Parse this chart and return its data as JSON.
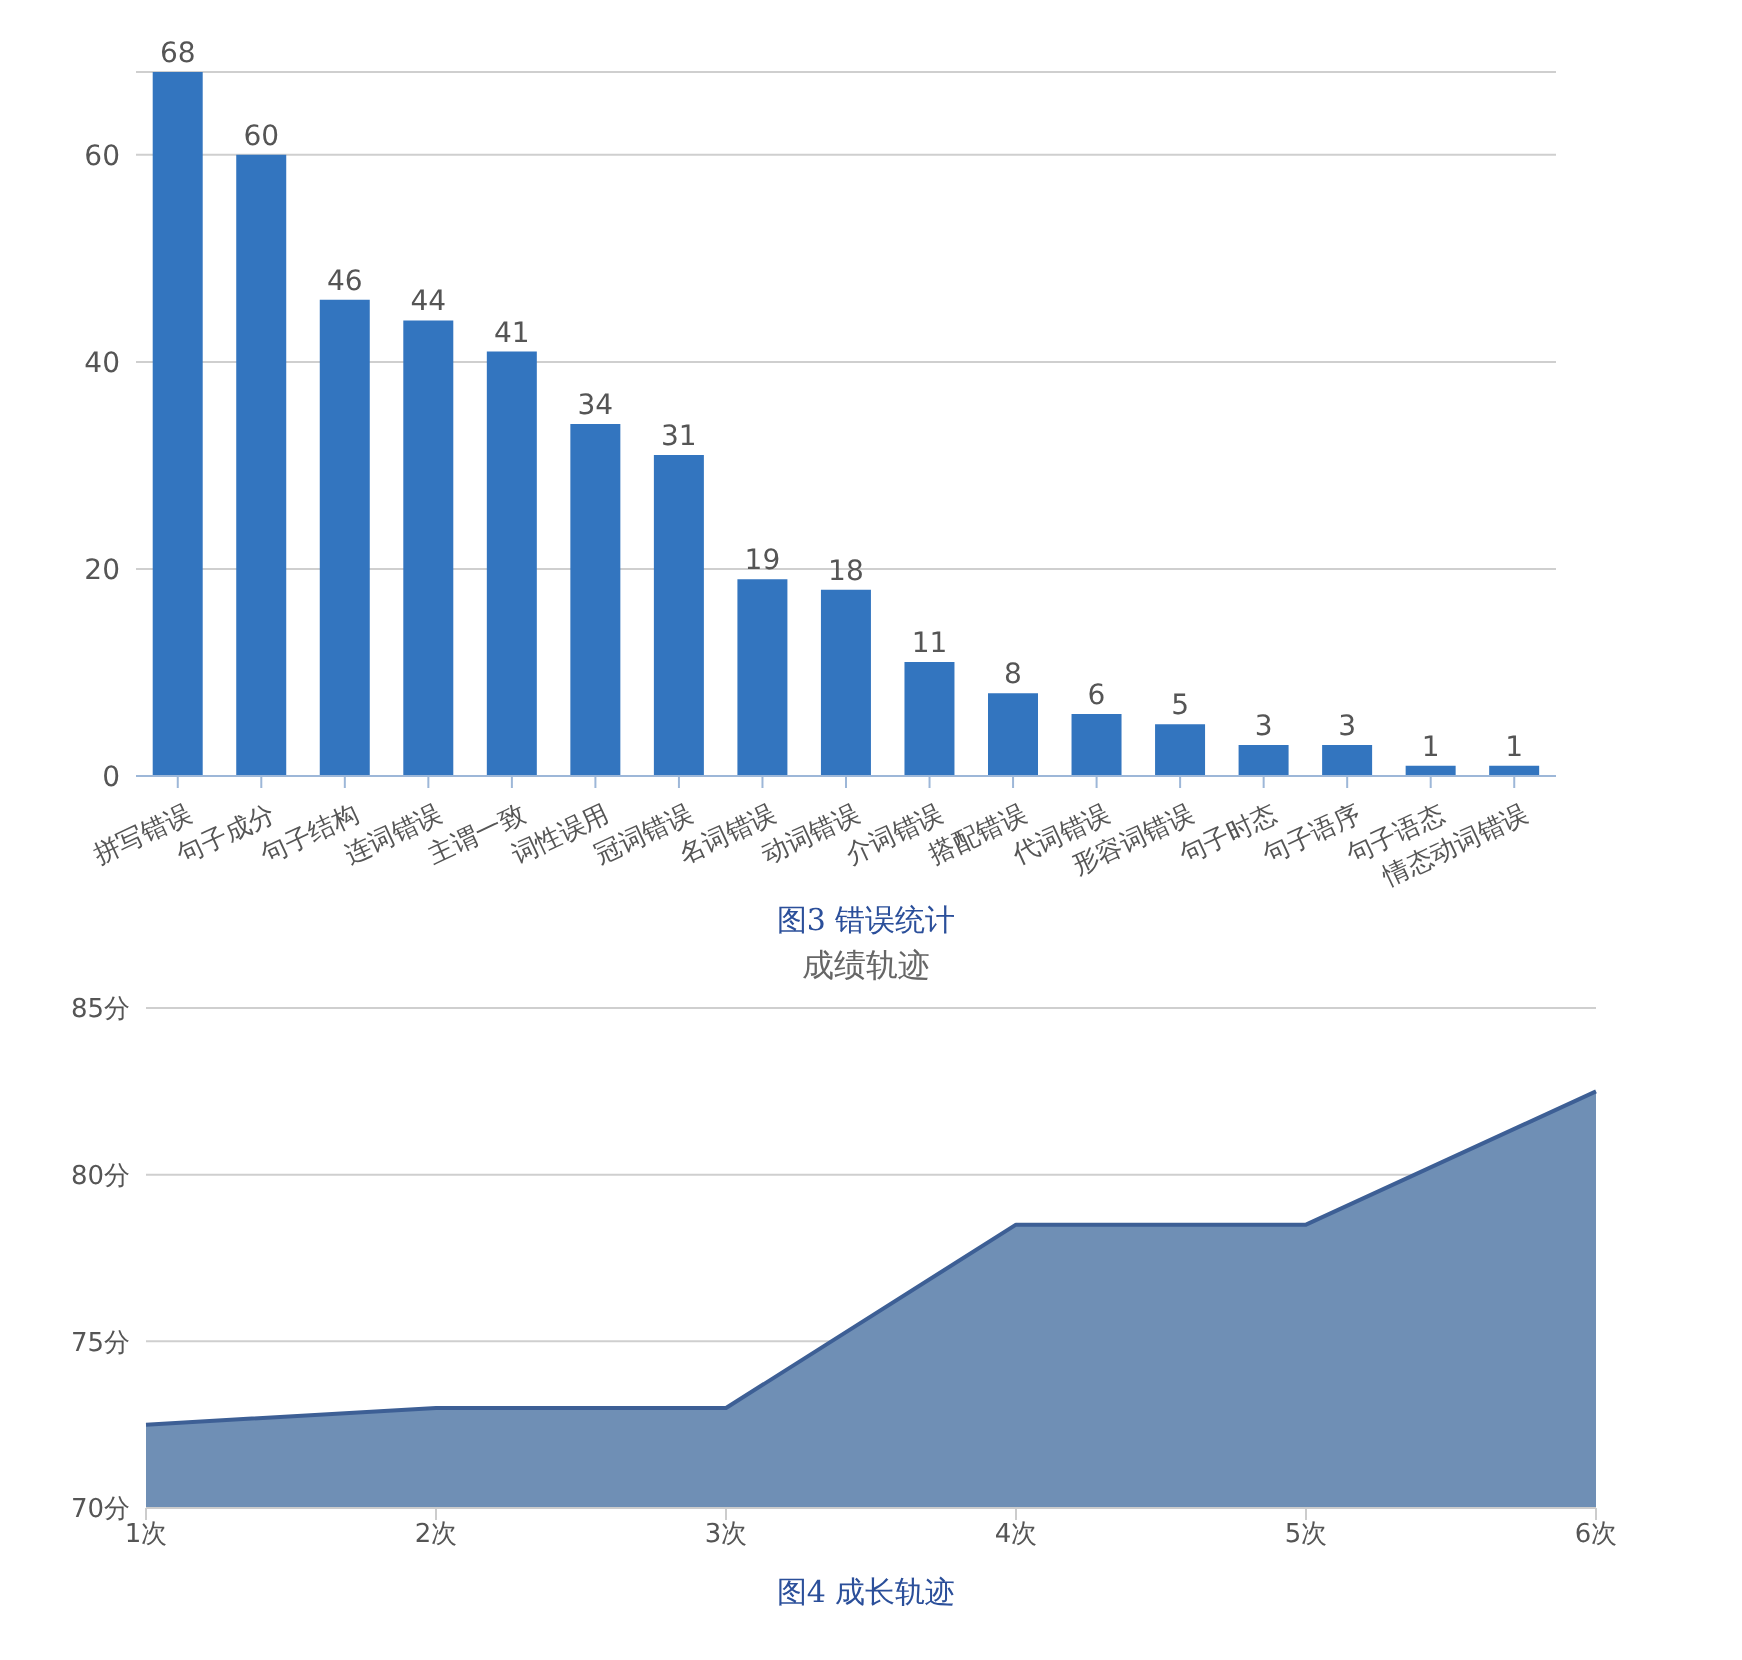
{
  "chart_data": [
    {
      "type": "bar",
      "categories": [
        "拼写错误",
        "句子成分",
        "句子结构",
        "连词错误",
        "主谓一致",
        "词性误用",
        "冠词错误",
        "名词错误",
        "动词错误",
        "介词错误",
        "搭配错误",
        "代词错误",
        "形容词错误",
        "句子时态",
        "句子语序",
        "句子语态",
        "情态动词错误"
      ],
      "values": [
        68,
        60,
        46,
        44,
        41,
        34,
        31,
        19,
        18,
        11,
        8,
        6,
        5,
        3,
        3,
        1,
        1
      ],
      "color": "#3375bf",
      "ylim": [
        0,
        68
      ],
      "yticks": [
        0,
        20,
        40,
        60
      ],
      "grid": "y",
      "data_labels": true,
      "legend": false,
      "annotations": [
        "图3 错误统计"
      ]
    },
    {
      "type": "area",
      "title": "成绩轨迹",
      "categories": [
        "1次",
        "2次",
        "3次",
        "4次",
        "5次",
        "6次"
      ],
      "values": [
        72.5,
        73,
        73,
        78.5,
        78.5,
        82.5
      ],
      "color": "#6f8fb5",
      "ylim": [
        70,
        85
      ],
      "yticks": [
        {
          "value": 70,
          "label": "70分"
        },
        {
          "value": 75,
          "label": "75分"
        },
        {
          "value": 80,
          "label": "80分"
        },
        {
          "value": 85,
          "label": "85分"
        }
      ],
      "grid": "y",
      "legend": false,
      "annotations": [
        "图4 成长轨迹"
      ]
    }
  ]
}
